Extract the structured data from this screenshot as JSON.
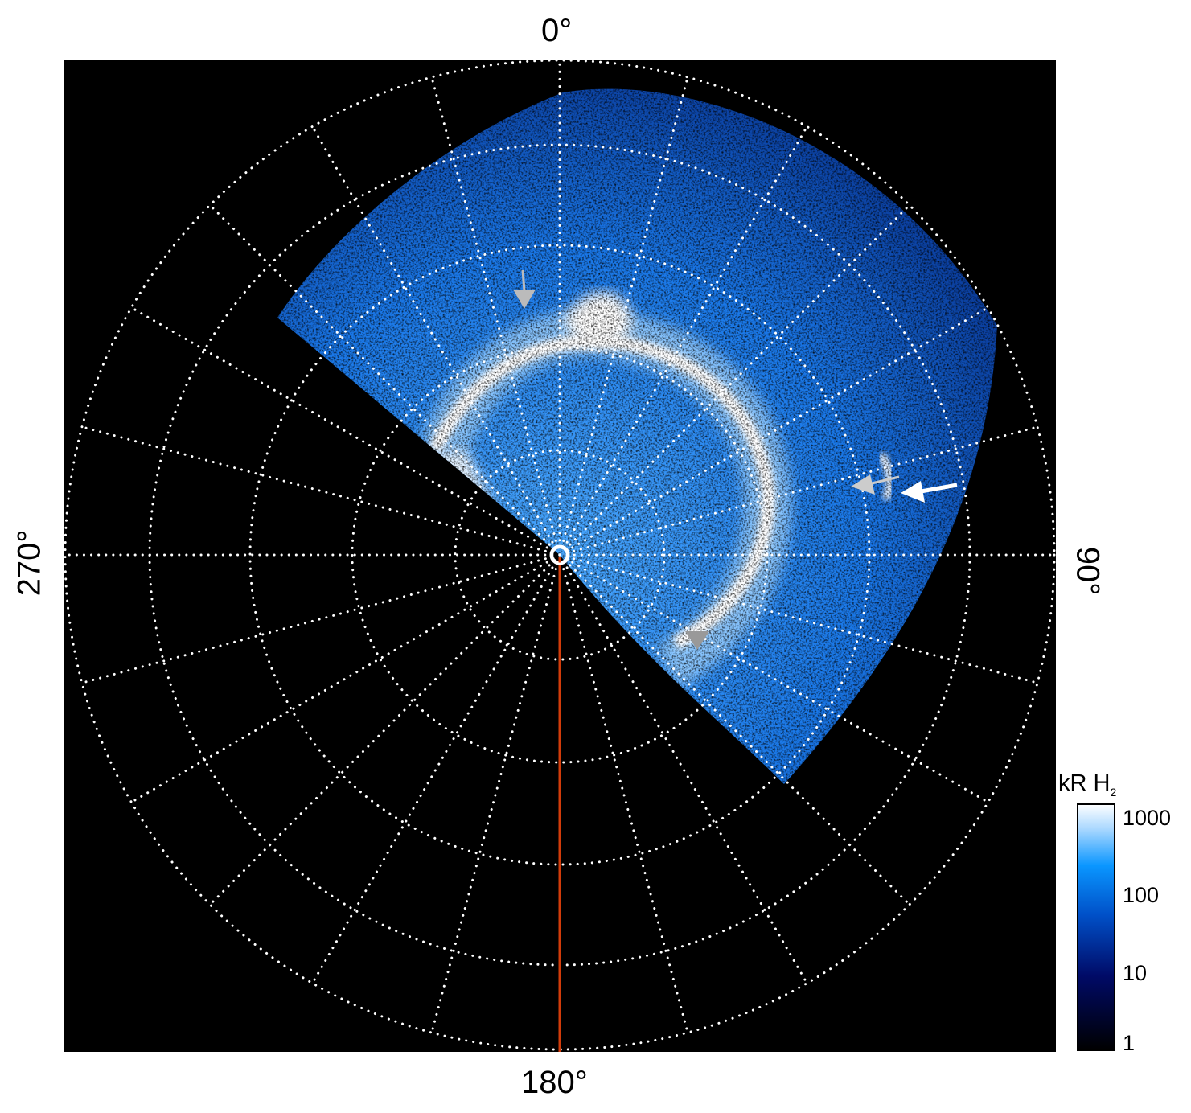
{
  "chart_data": {
    "type": "heatmap",
    "projection": "polar",
    "title": "",
    "angle_labels": [
      "0°",
      "90°",
      "180°",
      "270°"
    ],
    "grid": true,
    "grid_rings": 5,
    "grid_spokes_deg": 15,
    "colorbar": {
      "label": "kR H",
      "label_subscript": "2",
      "scale": "log",
      "range": [
        1,
        1000
      ],
      "ticks": [
        "1000",
        "100",
        "10",
        "1"
      ],
      "tick_values": [
        1000,
        100,
        10,
        1
      ],
      "colors": [
        "#000000",
        "#000a66",
        "#0050c8",
        "#0a96ff",
        "#aad8ff",
        "#ffffff"
      ]
    },
    "reference_line_deg": 180,
    "reference_line_color": "#d23c0a",
    "annotations": [
      "grey arrow",
      "grey arrow",
      "white arrow",
      "grey triangle"
    ]
  }
}
